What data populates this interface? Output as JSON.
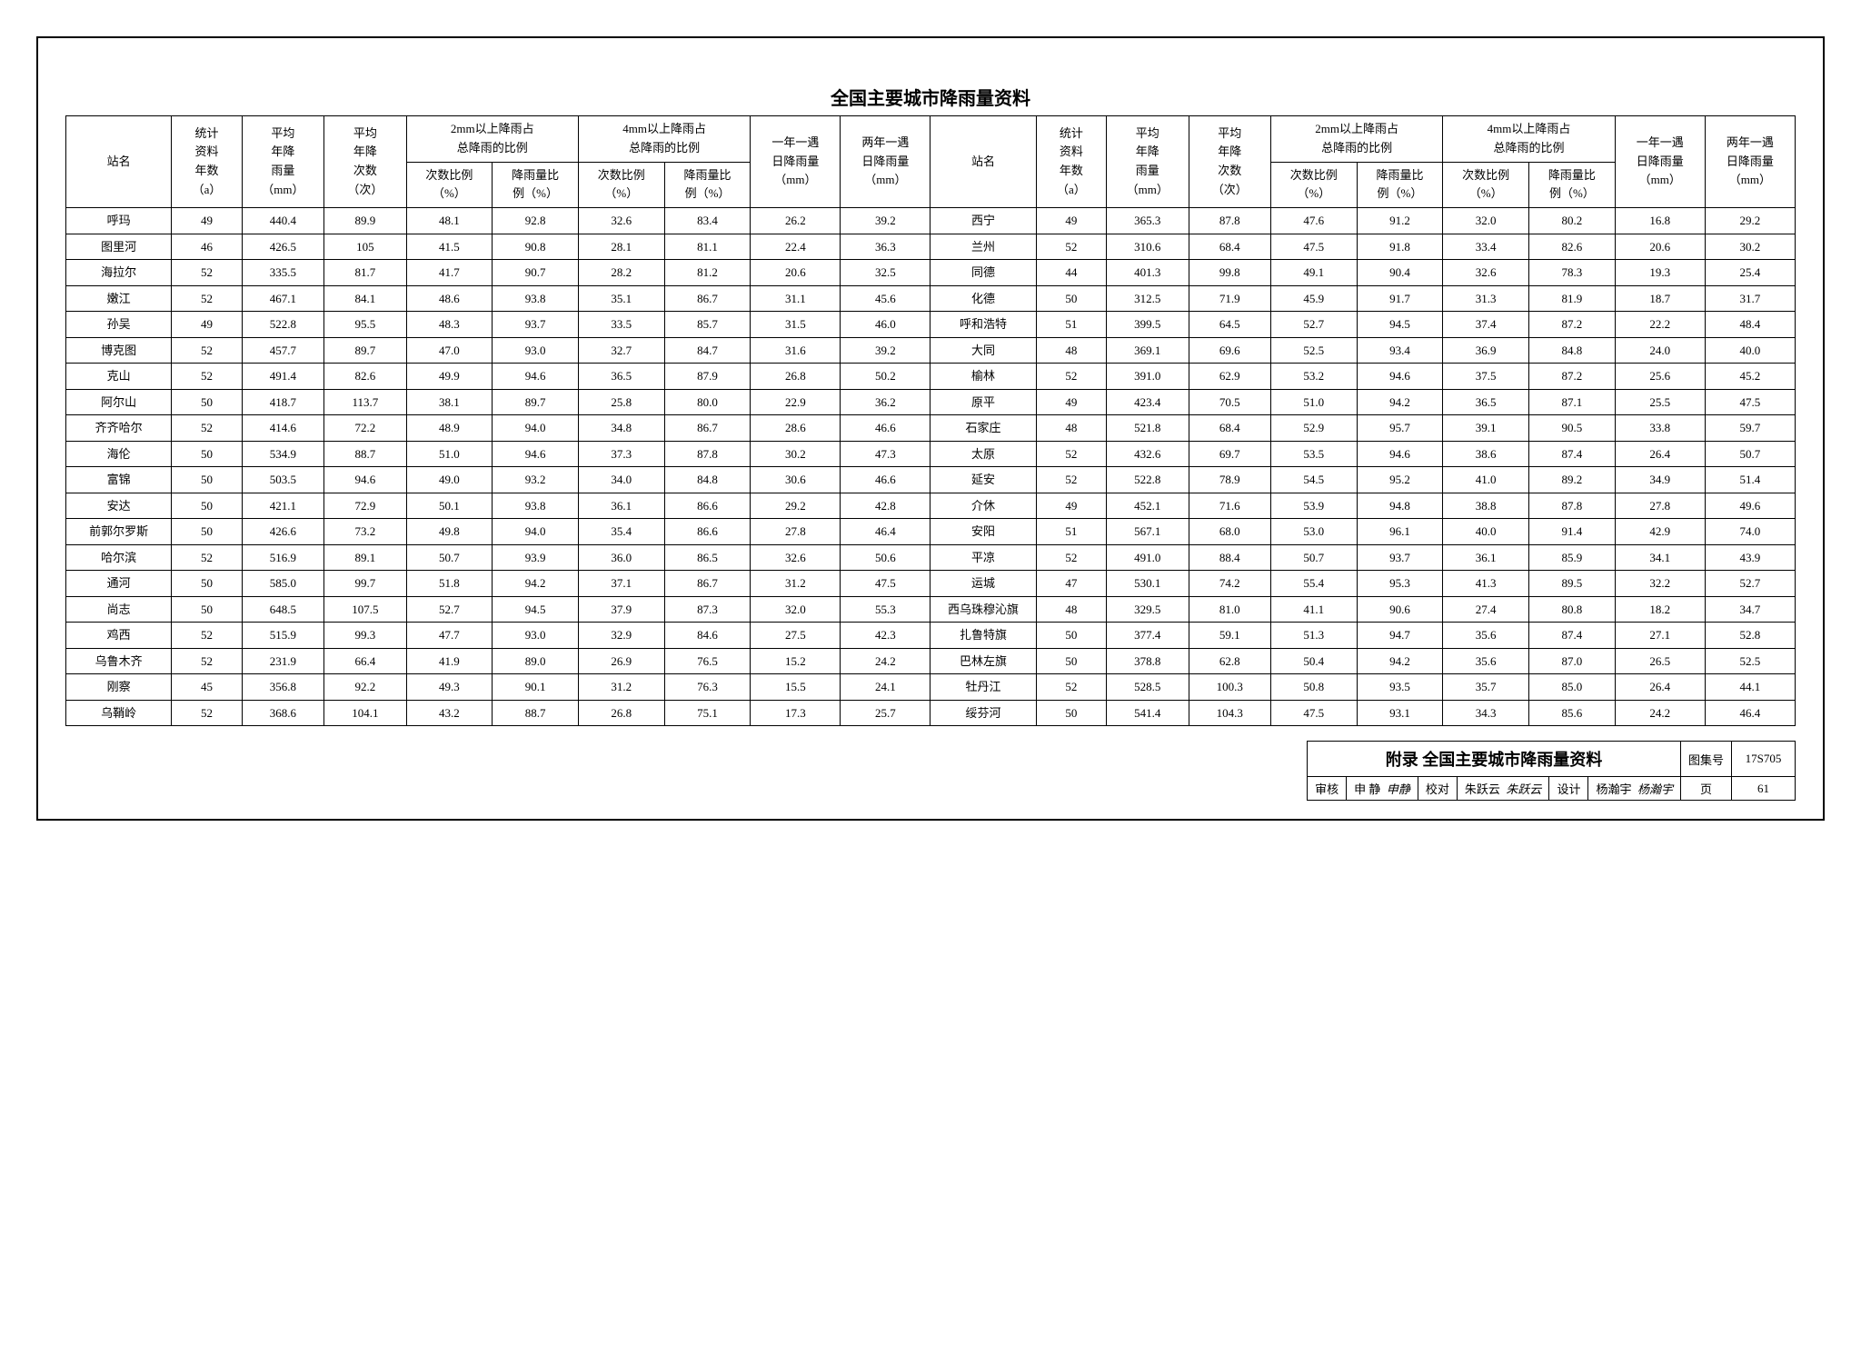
{
  "title": "全国主要城市降雨量资料",
  "columns": {
    "station": "站名",
    "years": "统计\n资料\n年数\n（a）",
    "avg_rain": "平均\n年降\n雨量\n（mm）",
    "avg_count": "平均\n年降\n次数\n（次）",
    "grp_2mm": "2mm以上降雨占\n总降雨的比例",
    "grp_4mm": "4mm以上降雨占\n总降雨的比例",
    "count_pct": "次数比例\n（%）",
    "amt_pct": "降雨量比\n例（%）",
    "oneyr": "一年一遇\n日降雨量\n（mm）",
    "twoyr": "两年一遇\n日降雨量\n（mm）"
  },
  "left_rows": [
    [
      "呼玛",
      "49",
      "440.4",
      "89.9",
      "48.1",
      "92.8",
      "32.6",
      "83.4",
      "26.2",
      "39.2"
    ],
    [
      "图里河",
      "46",
      "426.5",
      "105",
      "41.5",
      "90.8",
      "28.1",
      "81.1",
      "22.4",
      "36.3"
    ],
    [
      "海拉尔",
      "52",
      "335.5",
      "81.7",
      "41.7",
      "90.7",
      "28.2",
      "81.2",
      "20.6",
      "32.5"
    ],
    [
      "嫩江",
      "52",
      "467.1",
      "84.1",
      "48.6",
      "93.8",
      "35.1",
      "86.7",
      "31.1",
      "45.6"
    ],
    [
      "孙吴",
      "49",
      "522.8",
      "95.5",
      "48.3",
      "93.7",
      "33.5",
      "85.7",
      "31.5",
      "46.0"
    ],
    [
      "博克图",
      "52",
      "457.7",
      "89.7",
      "47.0",
      "93.0",
      "32.7",
      "84.7",
      "31.6",
      "39.2"
    ],
    [
      "克山",
      "52",
      "491.4",
      "82.6",
      "49.9",
      "94.6",
      "36.5",
      "87.9",
      "26.8",
      "50.2"
    ],
    [
      "阿尔山",
      "50",
      "418.7",
      "113.7",
      "38.1",
      "89.7",
      "25.8",
      "80.0",
      "22.9",
      "36.2"
    ],
    [
      "齐齐哈尔",
      "52",
      "414.6",
      "72.2",
      "48.9",
      "94.0",
      "34.8",
      "86.7",
      "28.6",
      "46.6"
    ],
    [
      "海伦",
      "50",
      "534.9",
      "88.7",
      "51.0",
      "94.6",
      "37.3",
      "87.8",
      "30.2",
      "47.3"
    ],
    [
      "富锦",
      "50",
      "503.5",
      "94.6",
      "49.0",
      "93.2",
      "34.0",
      "84.8",
      "30.6",
      "46.6"
    ],
    [
      "安达",
      "50",
      "421.1",
      "72.9",
      "50.1",
      "93.8",
      "36.1",
      "86.6",
      "29.2",
      "42.8"
    ],
    [
      "前郭尔罗斯",
      "50",
      "426.6",
      "73.2",
      "49.8",
      "94.0",
      "35.4",
      "86.6",
      "27.8",
      "46.4"
    ],
    [
      "哈尔滨",
      "52",
      "516.9",
      "89.1",
      "50.7",
      "93.9",
      "36.0",
      "86.5",
      "32.6",
      "50.6"
    ],
    [
      "通河",
      "50",
      "585.0",
      "99.7",
      "51.8",
      "94.2",
      "37.1",
      "86.7",
      "31.2",
      "47.5"
    ],
    [
      "尚志",
      "50",
      "648.5",
      "107.5",
      "52.7",
      "94.5",
      "37.9",
      "87.3",
      "32.0",
      "55.3"
    ],
    [
      "鸡西",
      "52",
      "515.9",
      "99.3",
      "47.7",
      "93.0",
      "32.9",
      "84.6",
      "27.5",
      "42.3"
    ],
    [
      "乌鲁木齐",
      "52",
      "231.9",
      "66.4",
      "41.9",
      "89.0",
      "26.9",
      "76.5",
      "15.2",
      "24.2"
    ],
    [
      "刚察",
      "45",
      "356.8",
      "92.2",
      "49.3",
      "90.1",
      "31.2",
      "76.3",
      "15.5",
      "24.1"
    ],
    [
      "乌鞘岭",
      "52",
      "368.6",
      "104.1",
      "43.2",
      "88.7",
      "26.8",
      "75.1",
      "17.3",
      "25.7"
    ]
  ],
  "right_rows": [
    [
      "西宁",
      "49",
      "365.3",
      "87.8",
      "47.6",
      "91.2",
      "32.0",
      "80.2",
      "16.8",
      "29.2"
    ],
    [
      "兰州",
      "52",
      "310.6",
      "68.4",
      "47.5",
      "91.8",
      "33.4",
      "82.6",
      "20.6",
      "30.2"
    ],
    [
      "同德",
      "44",
      "401.3",
      "99.8",
      "49.1",
      "90.4",
      "32.6",
      "78.3",
      "19.3",
      "25.4"
    ],
    [
      "化德",
      "50",
      "312.5",
      "71.9",
      "45.9",
      "91.7",
      "31.3",
      "81.9",
      "18.7",
      "31.7"
    ],
    [
      "呼和浩特",
      "51",
      "399.5",
      "64.5",
      "52.7",
      "94.5",
      "37.4",
      "87.2",
      "22.2",
      "48.4"
    ],
    [
      "大同",
      "48",
      "369.1",
      "69.6",
      "52.5",
      "93.4",
      "36.9",
      "84.8",
      "24.0",
      "40.0"
    ],
    [
      "榆林",
      "52",
      "391.0",
      "62.9",
      "53.2",
      "94.6",
      "37.5",
      "87.2",
      "25.6",
      "45.2"
    ],
    [
      "原平",
      "49",
      "423.4",
      "70.5",
      "51.0",
      "94.2",
      "36.5",
      "87.1",
      "25.5",
      "47.5"
    ],
    [
      "石家庄",
      "48",
      "521.8",
      "68.4",
      "52.9",
      "95.7",
      "39.1",
      "90.5",
      "33.8",
      "59.7"
    ],
    [
      "太原",
      "52",
      "432.6",
      "69.7",
      "53.5",
      "94.6",
      "38.6",
      "87.4",
      "26.4",
      "50.7"
    ],
    [
      "延安",
      "52",
      "522.8",
      "78.9",
      "54.5",
      "95.2",
      "41.0",
      "89.2",
      "34.9",
      "51.4"
    ],
    [
      "介休",
      "49",
      "452.1",
      "71.6",
      "53.9",
      "94.8",
      "38.8",
      "87.8",
      "27.8",
      "49.6"
    ],
    [
      "安阳",
      "51",
      "567.1",
      "68.0",
      "53.0",
      "96.1",
      "40.0",
      "91.4",
      "42.9",
      "74.0"
    ],
    [
      "平凉",
      "52",
      "491.0",
      "88.4",
      "50.7",
      "93.7",
      "36.1",
      "85.9",
      "34.1",
      "43.9"
    ],
    [
      "运城",
      "47",
      "530.1",
      "74.2",
      "55.4",
      "95.3",
      "41.3",
      "89.5",
      "32.2",
      "52.7"
    ],
    [
      "西乌珠穆沁旗",
      "48",
      "329.5",
      "81.0",
      "41.1",
      "90.6",
      "27.4",
      "80.8",
      "18.2",
      "34.7"
    ],
    [
      "扎鲁特旗",
      "50",
      "377.4",
      "59.1",
      "51.3",
      "94.7",
      "35.6",
      "87.4",
      "27.1",
      "52.8"
    ],
    [
      "巴林左旗",
      "50",
      "378.8",
      "62.8",
      "50.4",
      "94.2",
      "35.6",
      "87.0",
      "26.5",
      "52.5"
    ],
    [
      "牡丹江",
      "52",
      "528.5",
      "100.3",
      "50.8",
      "93.5",
      "35.7",
      "85.0",
      "26.4",
      "44.1"
    ],
    [
      "绥芬河",
      "50",
      "541.4",
      "104.3",
      "47.5",
      "93.1",
      "34.3",
      "85.6",
      "24.2",
      "46.4"
    ]
  ],
  "footer": {
    "appendix": "附录  全国主要城市降雨量资料",
    "tuji_label": "图集号",
    "tuji_value": "17S705",
    "shenhe_label": "审核",
    "shenhe_name": "申 静",
    "shenhe_sig": "申静",
    "jiaodui_label": "校对",
    "jiaodui_name": "朱跃云",
    "jiaodui_sig": "朱跃云",
    "sheji_label": "设计",
    "sheji_name": "杨瀚宇",
    "sheji_sig": "杨瀚宇",
    "page_label": "页",
    "page_value": "61"
  },
  "style": {
    "font_size_body": 13,
    "font_size_title": 20,
    "font_size_footer_title": 18,
    "border_color": "#000000",
    "background": "#ffffff",
    "text_color": "#000000"
  }
}
